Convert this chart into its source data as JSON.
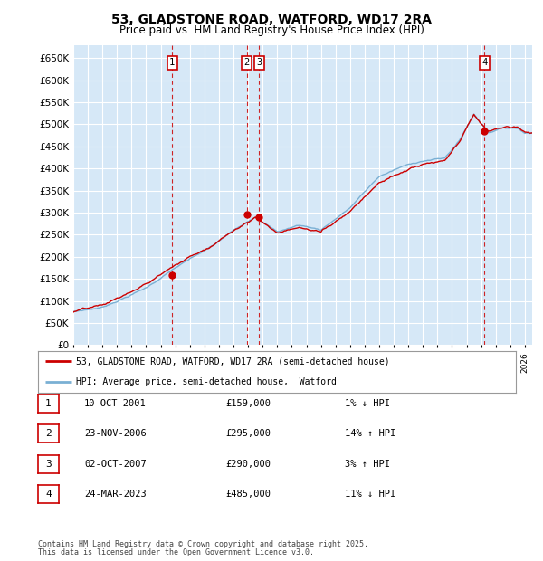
{
  "title": "53, GLADSTONE ROAD, WATFORD, WD17 2RA",
  "subtitle": "Price paid vs. HM Land Registry's House Price Index (HPI)",
  "ylim": [
    0,
    680000
  ],
  "yticks": [
    0,
    50000,
    100000,
    150000,
    200000,
    250000,
    300000,
    350000,
    400000,
    450000,
    500000,
    550000,
    600000,
    650000
  ],
  "ytick_labels": [
    "£0",
    "£50K",
    "£100K",
    "£150K",
    "£200K",
    "£250K",
    "£300K",
    "£350K",
    "£400K",
    "£450K",
    "£500K",
    "£550K",
    "£600K",
    "£650K"
  ],
  "xlim_start": 1995.0,
  "xlim_end": 2026.5,
  "plot_bg_color": "#d6e8f7",
  "fig_bg_color": "#ffffff",
  "grid_color": "#ffffff",
  "hpi_line_color": "#7ab0d4",
  "price_line_color": "#cc0000",
  "sale_marker_color": "#cc0000",
  "annotation_box_color": "#cc0000",
  "sales": [
    {
      "label": "1",
      "year": 2001.79,
      "price": 159000
    },
    {
      "label": "2",
      "year": 2006.9,
      "price": 295000
    },
    {
      "label": "3",
      "year": 2007.76,
      "price": 290000
    },
    {
      "label": "4",
      "year": 2023.23,
      "price": 485000
    }
  ],
  "legend_entries": [
    {
      "label": "53, GLADSTONE ROAD, WATFORD, WD17 2RA (semi-detached house)",
      "color": "#cc0000"
    },
    {
      "label": "HPI: Average price, semi-detached house,  Watford",
      "color": "#7ab0d4"
    }
  ],
  "footer_lines": [
    "Contains HM Land Registry data © Crown copyright and database right 2025.",
    "This data is licensed under the Open Government Licence v3.0."
  ],
  "table_rows": [
    {
      "num": "1",
      "date": "10-OCT-2001",
      "price": "£159,000",
      "pct": "1% ↓ HPI"
    },
    {
      "num": "2",
      "date": "23-NOV-2006",
      "price": "£295,000",
      "pct": "14% ↑ HPI"
    },
    {
      "num": "3",
      "date": "02-OCT-2007",
      "price": "£290,000",
      "pct": "3% ↑ HPI"
    },
    {
      "num": "4",
      "date": "24-MAR-2023",
      "price": "£485,000",
      "pct": "11% ↓ HPI"
    }
  ]
}
